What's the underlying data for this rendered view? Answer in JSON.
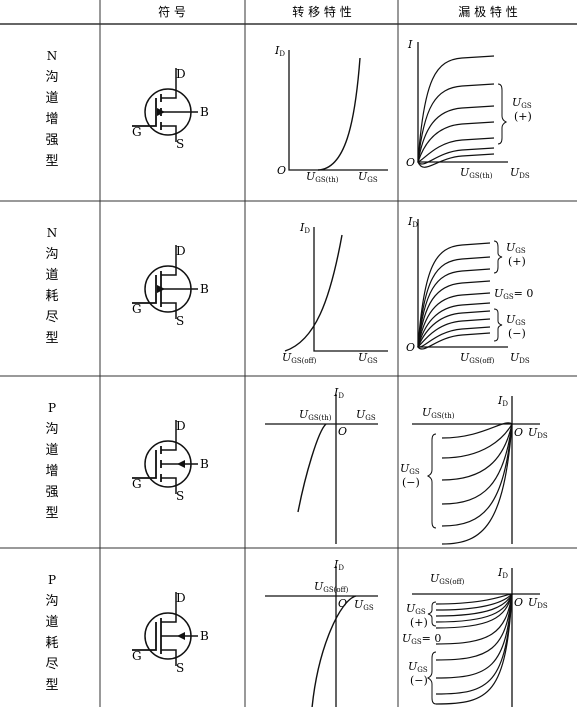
{
  "header": {
    "symbol": "符 号",
    "transfer": "转 移 特 性",
    "drain": "漏 极 特 性"
  },
  "rows": [
    {
      "type_label": [
        "N",
        "沟",
        "道",
        "增",
        "强",
        "型"
      ],
      "terminals": {
        "d": "D",
        "g": "G",
        "s": "S",
        "b": "B"
      },
      "transfer": {
        "y": "I",
        "y_sub": "D",
        "origin": "O",
        "x_tick": "U",
        "x_tick_sub": "GS(th)",
        "x_axis": "U",
        "x_axis_sub": "GS"
      },
      "drain": {
        "y": "I",
        "origin": "O",
        "x_tick": "U",
        "x_tick_sub": "GS(th)",
        "x_axis": "U",
        "x_axis_sub": "DS",
        "annot": [
          {
            "t": "U",
            "sub": "GS"
          },
          {
            "t": "(+)"
          }
        ]
      }
    },
    {
      "type_label": [
        "N",
        "沟",
        "道",
        "耗",
        "尽",
        "型"
      ],
      "terminals": {
        "d": "D",
        "g": "G",
        "s": "S",
        "b": "B"
      },
      "transfer": {
        "y": "I",
        "y_sub": "D",
        "origin": "",
        "x_tick": "U",
        "x_tick_sub": "GS(off)",
        "x_axis": "U",
        "x_axis_sub": "GS"
      },
      "drain": {
        "y": "I",
        "y_sub": "D",
        "origin": "O",
        "x_tick": "U",
        "x_tick_sub": "GS(off)",
        "x_axis": "U",
        "x_axis_sub": "DS",
        "annot": [
          {
            "t": "U",
            "sub": "GS"
          },
          {
            "t": "(+)"
          },
          {
            "t": "U",
            "sub": "GS",
            "after": "= 0"
          },
          {
            "t": "U",
            "sub": "GS"
          },
          {
            "t": "(−)"
          }
        ]
      }
    },
    {
      "type_label": [
        "P",
        "沟",
        "道",
        "增",
        "强",
        "型"
      ],
      "terminals": {
        "d": "D",
        "g": "G",
        "s": "S",
        "b": "B"
      },
      "transfer": {
        "y": "I",
        "y_sub": "D",
        "origin": "O",
        "x_tick": "U",
        "x_tick_sub": "GS(th)",
        "x_axis": "U",
        "x_axis_sub": "GS"
      },
      "drain": {
        "y": "I",
        "y_sub": "D",
        "origin": "O",
        "x_tick": "U",
        "x_tick_sub": "GS(th)",
        "x_axis": "U",
        "x_axis_sub": "DS",
        "annot": [
          {
            "t": "U",
            "sub": "GS"
          },
          {
            "t": "(−)"
          }
        ]
      }
    },
    {
      "type_label": [
        "P",
        "沟",
        "道",
        "耗",
        "尽",
        "型"
      ],
      "terminals": {
        "d": "D",
        "g": "G",
        "s": "S",
        "b": "B"
      },
      "transfer": {
        "y": "I",
        "y_sub": "D",
        "origin": "O",
        "x_tick": "U",
        "x_tick_sub": "GS(off)",
        "x_axis": "U",
        "x_axis_sub": "GS"
      },
      "drain": {
        "y": "I",
        "y_sub": "D",
        "origin": "O",
        "x_tick": "U",
        "x_tick_sub": "GS(off)",
        "x_axis": "U",
        "x_axis_sub": "DS",
        "annot": [
          {
            "t": "U",
            "sub": "GS"
          },
          {
            "t": "(+)"
          },
          {
            "t": "U",
            "sub": "GS",
            "after": "= 0"
          },
          {
            "t": "U",
            "sub": "GS"
          },
          {
            "t": "(−)"
          }
        ]
      }
    }
  ]
}
